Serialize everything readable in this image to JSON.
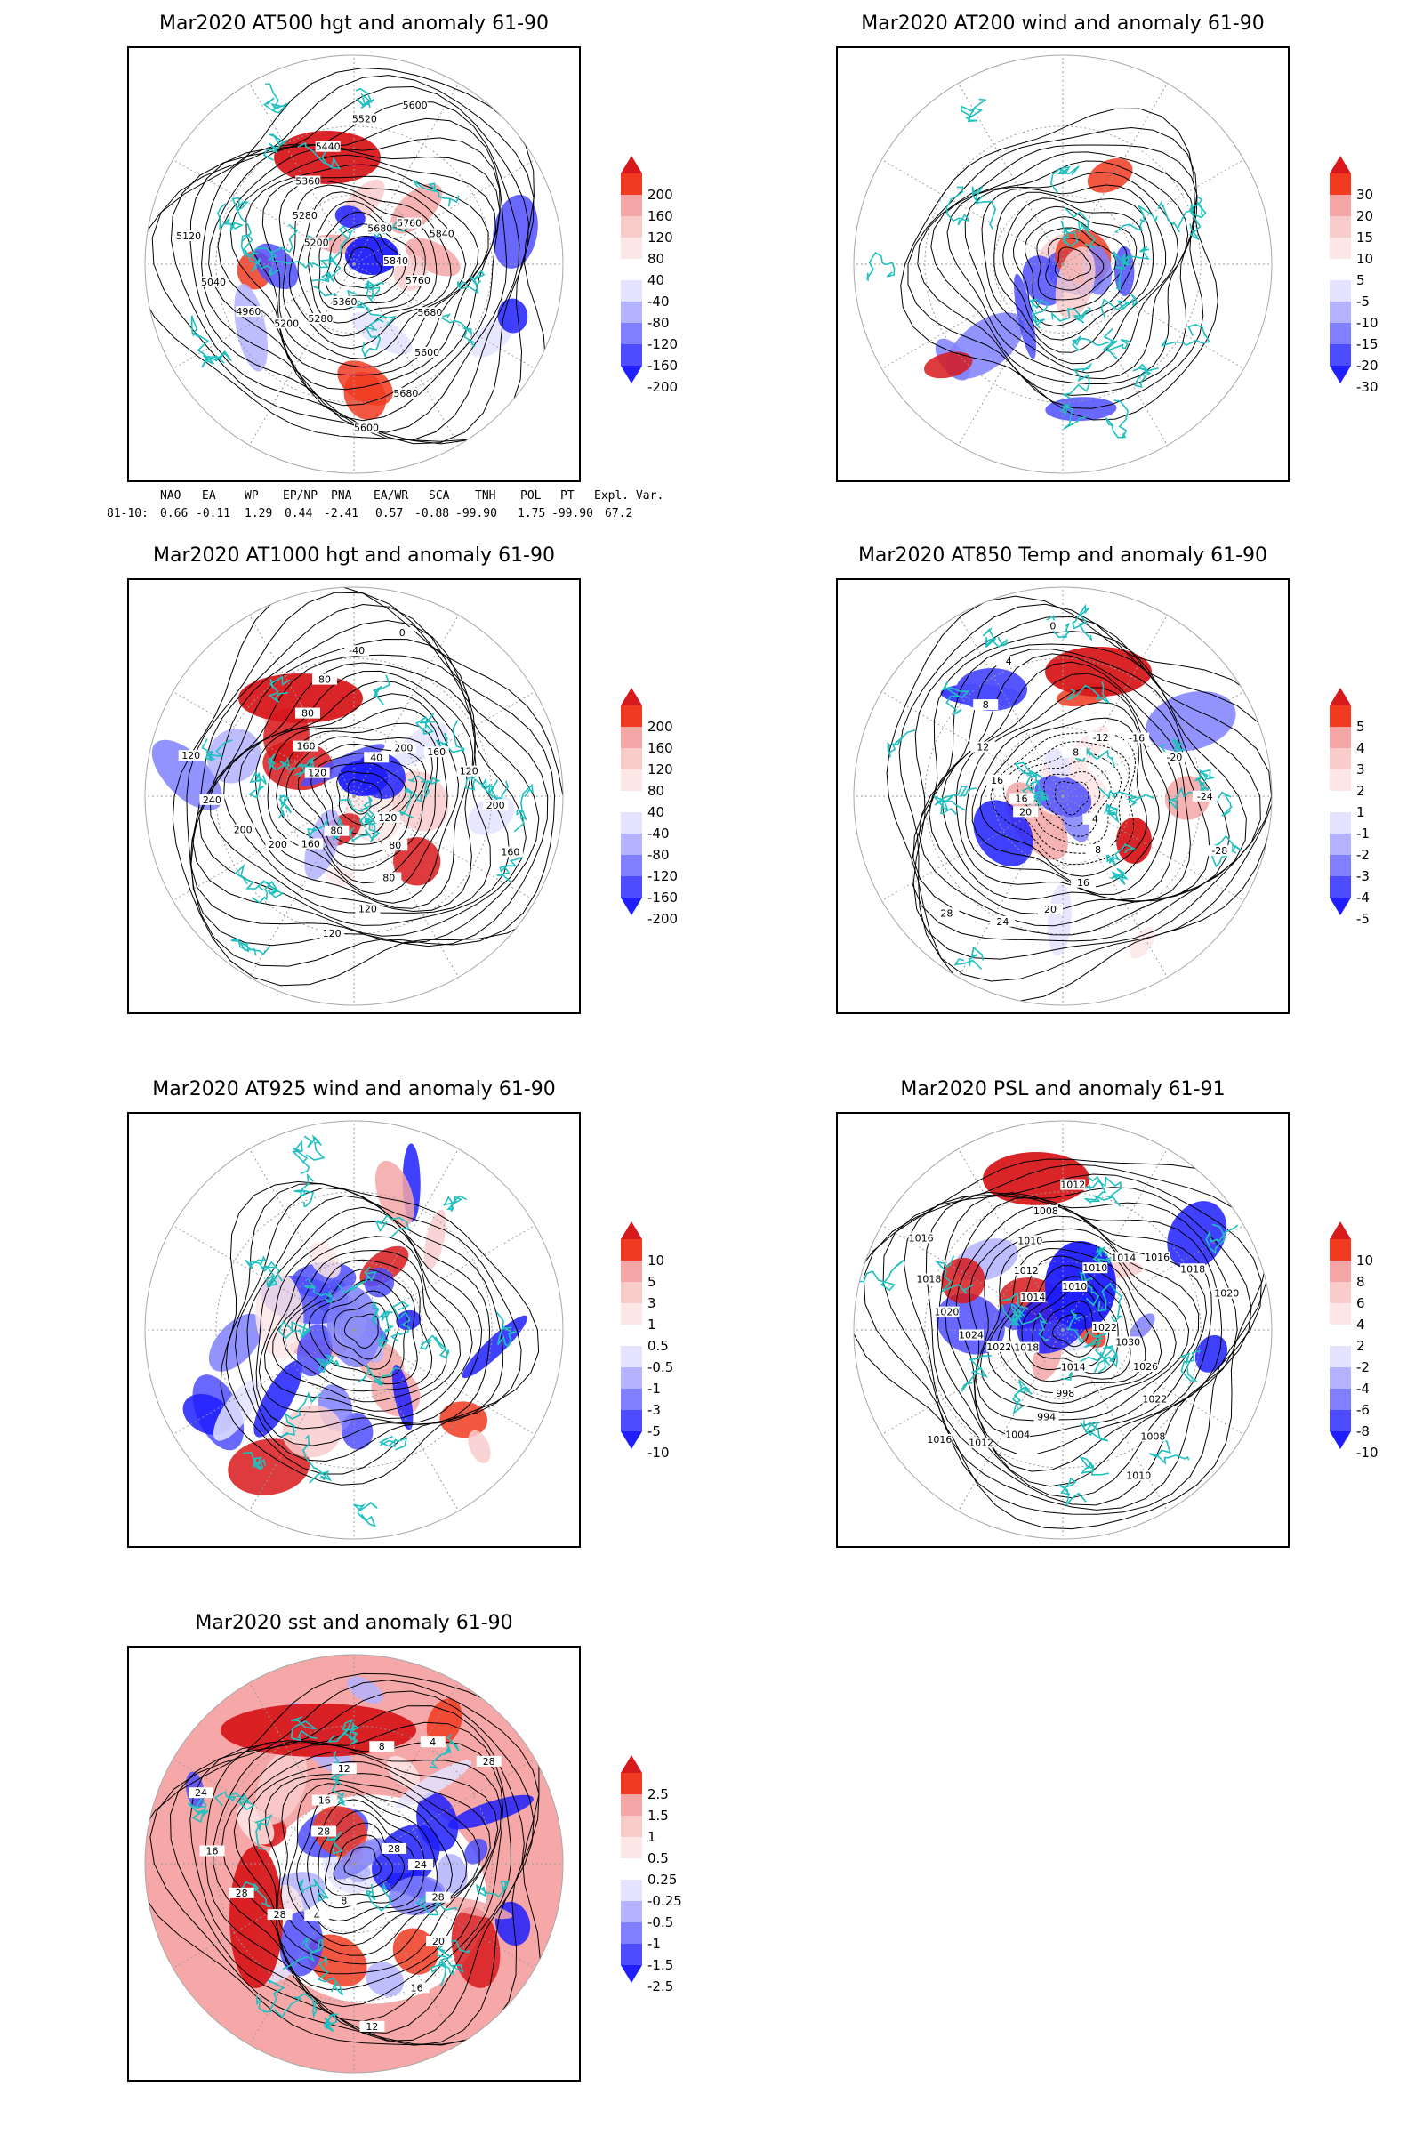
{
  "panels": [
    {
      "id": "p1",
      "title": "Mar2020 AT500 hgt and anomaly 61-90",
      "contour_labels": [
        "5840",
        "5760",
        "5680",
        "5600",
        "5680",
        "5600",
        "5360",
        "5280",
        "5200",
        "4960",
        "5040",
        "5120",
        "5200",
        "5280",
        "5360",
        "5440",
        "5520",
        "5600",
        "5680",
        "5760",
        "5840"
      ],
      "colorbar": {
        "labels": [
          "200",
          "160",
          "120",
          "80",
          "40",
          "-40",
          "-80",
          "-120",
          "-160",
          "-200"
        ],
        "colors": [
          "#d7191c",
          "#f03b20",
          "#f4a6a6",
          "#f9cccc",
          "#fde6e6",
          "#ffffff",
          "#e3e3ff",
          "#b3b3ff",
          "#8080ff",
          "#4d4dff",
          "#1e1eff"
        ]
      }
    },
    {
      "id": "p2",
      "title": "Mar2020 AT200 wind and anomaly 61-90",
      "colorbar": {
        "labels": [
          "30",
          "20",
          "15",
          "10",
          "5",
          "-5",
          "-10",
          "-15",
          "-20",
          "-30"
        ],
        "colors": [
          "#d7191c",
          "#f03b20",
          "#f4a6a6",
          "#f9cccc",
          "#fde6e6",
          "#ffffff",
          "#e3e3ff",
          "#b3b3ff",
          "#8080ff",
          "#4d4dff",
          "#1e1eff"
        ]
      }
    },
    {
      "id": "p3",
      "title": "Mar2020 AT1000 hgt and anomaly 61-90",
      "contour_labels": [
        "80",
        "160",
        "200",
        "200",
        "240",
        "120",
        "120",
        "160",
        "80",
        "80",
        "-40",
        "0",
        "40",
        "200",
        "160",
        "120",
        "200",
        "160",
        "120",
        "80",
        "80",
        "120",
        "120"
      ],
      "colorbar": {
        "labels": [
          "200",
          "160",
          "120",
          "80",
          "40",
          "-40",
          "-80",
          "-120",
          "-160",
          "-200"
        ],
        "colors": [
          "#d7191c",
          "#f03b20",
          "#f4a6a6",
          "#f9cccc",
          "#fde6e6",
          "#ffffff",
          "#e3e3ff",
          "#b3b3ff",
          "#8080ff",
          "#4d4dff",
          "#1e1eff"
        ]
      }
    },
    {
      "id": "p4",
      "title": "Mar2020 AT850 Temp and anomaly 61-90",
      "contour_labels": [
        "16",
        "16",
        "12",
        "8",
        "4",
        "0",
        "-8",
        "-12",
        "-16",
        "-20",
        "-24",
        "-28",
        "4",
        "8",
        "16",
        "20",
        "24",
        "28",
        "20"
      ],
      "colorbar": {
        "labels": [
          "5",
          "4",
          "3",
          "2",
          "1",
          "-1",
          "-2",
          "-3",
          "-4",
          "-5"
        ],
        "colors": [
          "#d7191c",
          "#f03b20",
          "#f4a6a6",
          "#f9cccc",
          "#fde6e6",
          "#ffffff",
          "#e3e3ff",
          "#b3b3ff",
          "#8080ff",
          "#4d4dff",
          "#1e1eff"
        ]
      }
    },
    {
      "id": "p5",
      "title": "Mar2020 AT925 wind and anomaly 61-90",
      "colorbar": {
        "labels": [
          "10",
          "5",
          "3",
          "1",
          "0.5",
          "-0.5",
          "-1",
          "-3",
          "-5",
          "-10"
        ],
        "colors": [
          "#d7191c",
          "#f03b20",
          "#f4a6a6",
          "#f9cccc",
          "#fde6e6",
          "#ffffff",
          "#e3e3ff",
          "#b3b3ff",
          "#8080ff",
          "#4d4dff",
          "#1e1eff"
        ]
      }
    },
    {
      "id": "p6",
      "title": "Mar2020 PSL and anomaly 61-91",
      "contour_labels": [
        "1010",
        "1010",
        "1014",
        "1016",
        "1018",
        "1020",
        "1022",
        "1030",
        "1026",
        "1022",
        "1008",
        "1010",
        "1014",
        "998",
        "994",
        "1004",
        "1012",
        "1016",
        "1018",
        "1022",
        "1024",
        "1020",
        "1018",
        "1016",
        "1014",
        "1012",
        "1010",
        "1008",
        "1012"
      ],
      "colorbar": {
        "labels": [
          "10",
          "8",
          "6",
          "4",
          "2",
          "-2",
          "-4",
          "-6",
          "-8",
          "-10"
        ],
        "colors": [
          "#d7191c",
          "#f03b20",
          "#f4a6a6",
          "#f9cccc",
          "#fde6e6",
          "#ffffff",
          "#e3e3ff",
          "#b3b3ff",
          "#8080ff",
          "#4d4dff",
          "#1e1eff"
        ]
      }
    },
    {
      "id": "p7",
      "title": "Mar2020 sst and anomaly 61-90",
      "contour_labels": [
        "28",
        "24",
        "28",
        "20",
        "16",
        "12",
        "8",
        "4",
        "28",
        "28",
        "16",
        "24",
        "28",
        "16",
        "12",
        "8",
        "4",
        "28"
      ],
      "colorbar": {
        "labels": [
          "2.5",
          "1.5",
          "1",
          "0.5",
          "0.25",
          "-0.25",
          "-0.5",
          "-1",
          "-1.5",
          "-2.5"
        ],
        "colors": [
          "#d7191c",
          "#f03b20",
          "#f4a6a6",
          "#f9cccc",
          "#fde6e6",
          "#ffffff",
          "#e3e3ff",
          "#b3b3ff",
          "#8080ff",
          "#4d4dff",
          "#1e1eff"
        ]
      }
    }
  ],
  "indices": {
    "headers": [
      "NAO",
      "EA",
      "WP",
      "EP/NP",
      "PNA",
      "EA/WR",
      "SCA",
      "TNH",
      "POL",
      "PT",
      "Expl. Var."
    ],
    "row_label": "81-10:",
    "values": [
      "0.66",
      "-0.11",
      "1.29",
      "0.44",
      "-2.41",
      "0.57",
      "-0.88",
      "-99.90",
      "1.75",
      "-99.90",
      "67.2"
    ]
  }
}
